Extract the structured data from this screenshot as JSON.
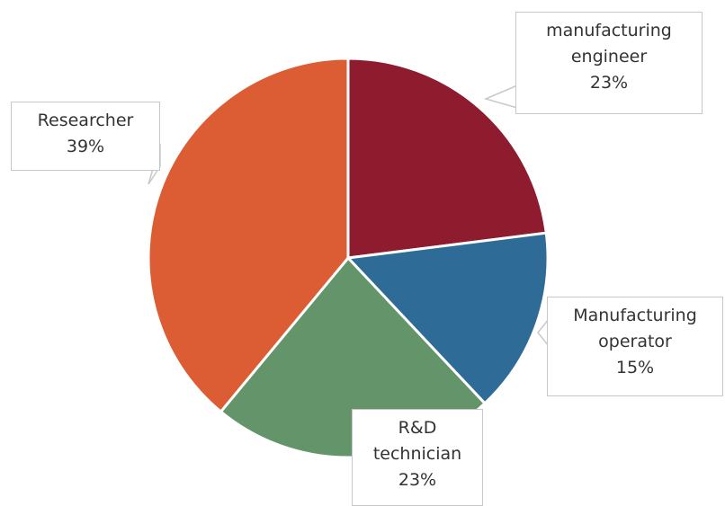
{
  "chart_data": {
    "type": "pie",
    "categories": [
      "manufacturing engineer",
      "Manufacturing operator",
      "R&D technician",
      "Researcher"
    ],
    "values": [
      23,
      15,
      23,
      39
    ],
    "value_labels": [
      "23%",
      "15%",
      "23%",
      "39%"
    ],
    "colors": [
      "#8e1c2e",
      "#2e6b97",
      "#64956a",
      "#dc5d33"
    ]
  }
}
